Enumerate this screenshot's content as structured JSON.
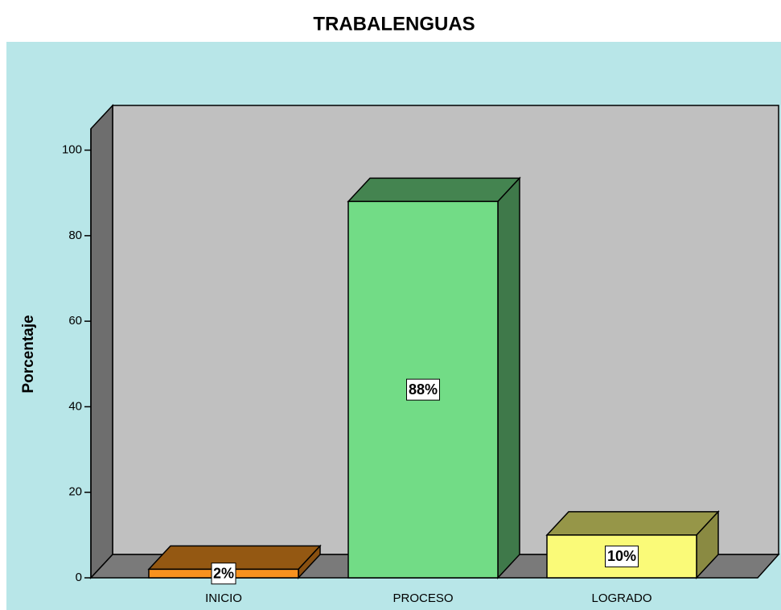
{
  "chart_data": {
    "type": "bar3d",
    "title": "TRABALENGUAS",
    "y_label": "Porcentaje",
    "categories": [
      "INICIO",
      "PROCESO",
      "LOGRADO"
    ],
    "values": [
      2,
      88,
      10
    ],
    "value_labels": [
      "2%",
      "88%",
      "10%"
    ],
    "colors": [
      "#f7921e",
      "#72dc86",
      "#fafa78"
    ],
    "ylim": [
      0,
      105
    ],
    "yticks": [
      0,
      20,
      40,
      60,
      80,
      100
    ]
  }
}
